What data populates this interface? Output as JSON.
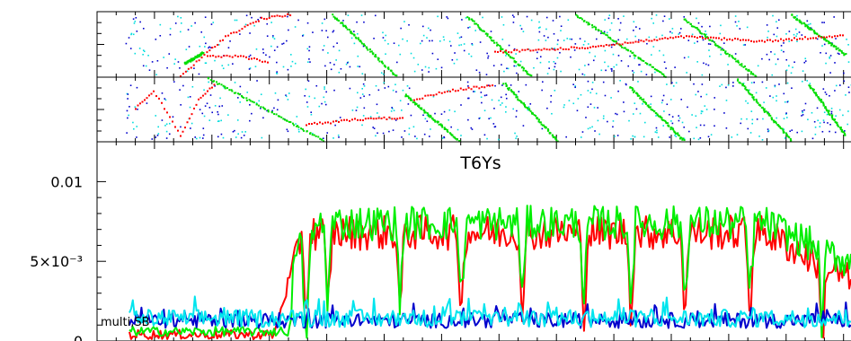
{
  "chart_data": [
    {
      "type": "scatter",
      "panel": "top",
      "series": [
        {
          "color": "#ff0000"
        },
        {
          "color": "#00dd00"
        },
        {
          "color": "#0000cc"
        },
        {
          "color": "#00dddd"
        }
      ]
    },
    {
      "type": "scatter",
      "panel": "middle",
      "series": [
        {
          "color": "#ff0000"
        },
        {
          "color": "#00dd00"
        },
        {
          "color": "#0000cc"
        },
        {
          "color": "#00dddd"
        }
      ]
    },
    {
      "type": "line",
      "title": "T6Ys",
      "annotation": "multi,SB",
      "ylim": [
        0,
        0.0125
      ],
      "yticks": [
        {
          "value": 0,
          "label": "0"
        },
        {
          "value": 0.005,
          "label": "5×10⁻³"
        },
        {
          "value": 0.01,
          "label": "0.01"
        }
      ],
      "grid": false,
      "x_samples": 420,
      "series": [
        {
          "color": "#ff0000",
          "base": 0.0068,
          "pre_value": 0.0004,
          "rise_start": 0.2,
          "dips": [
            0.245,
            0.275,
            0.375,
            0.46,
            0.545,
            0.63,
            0.695,
            0.77,
            0.86,
            0.96
          ],
          "dip_depth": 0.0052,
          "end_drift": 0.003
        },
        {
          "color": "#00ee00",
          "base": 0.0074,
          "pre_value": 0.0006,
          "rise_start": 0.22,
          "dips": [
            0.245,
            0.275,
            0.375,
            0.46,
            0.545,
            0.63,
            0.695,
            0.77,
            0.86,
            0.96
          ],
          "dip_depth": 0.005,
          "end_drift": 0.0025
        },
        {
          "color": "#0000cc",
          "base": 0.0011,
          "noise": 0.0006
        },
        {
          "color": "#00e5ee",
          "base": 0.0012,
          "noise": 0.0007
        }
      ]
    }
  ]
}
